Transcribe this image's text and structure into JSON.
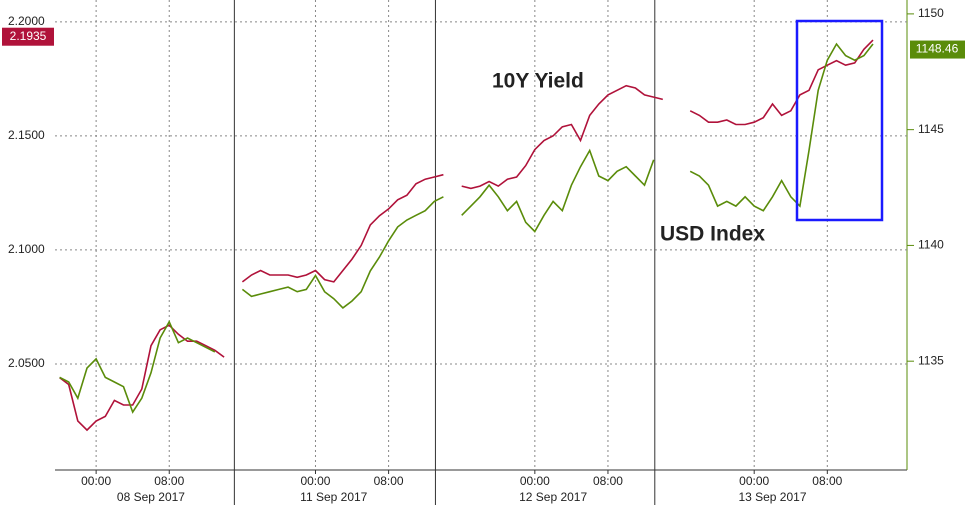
{
  "chart_data": {
    "type": "line",
    "categories": [
      null,
      null,
      null,
      null,
      "00:00",
      null,
      null,
      null,
      null,
      null,
      null,
      null,
      "08:00",
      null,
      null,
      null,
      null,
      null,
      null,
      null,
      null,
      null,
      null,
      null,
      null,
      null,
      null,
      null,
      "00:00",
      null,
      null,
      null,
      null,
      null,
      null,
      null,
      "08:00",
      null,
      null,
      null,
      null,
      null,
      null,
      null,
      null,
      null,
      null,
      null,
      null,
      null,
      null,
      null,
      "00:00",
      null,
      null,
      null,
      null,
      null,
      null,
      null,
      "08:00",
      null,
      null,
      null,
      null,
      null,
      null,
      null,
      null,
      null,
      null,
      null,
      null,
      null,
      null,
      null,
      "00:00",
      null,
      null,
      null,
      null,
      null,
      null,
      null,
      "08:00",
      null,
      null,
      null,
      null,
      null,
      null,
      null,
      null
    ],
    "dates": [
      null,
      null,
      null,
      null,
      null,
      null,
      null,
      null,
      null,
      null,
      "08 Sep 2017",
      null,
      null,
      null,
      null,
      null,
      null,
      null,
      null,
      null,
      null,
      null,
      null,
      null,
      null,
      null,
      null,
      null,
      null,
      null,
      "11 Sep 2017",
      null,
      null,
      null,
      null,
      null,
      null,
      null,
      null,
      null,
      null,
      null,
      null,
      null,
      null,
      null,
      null,
      null,
      null,
      null,
      null,
      null,
      null,
      null,
      "12 Sep 2017",
      null,
      null,
      null,
      null,
      null,
      null,
      null,
      null,
      null,
      null,
      null,
      null,
      null,
      null,
      null,
      null,
      null,
      null,
      null,
      null,
      null,
      null,
      null,
      "13 Sep 2017",
      null,
      null,
      null,
      null,
      null,
      null,
      null,
      null,
      null,
      null,
      null,
      null,
      null,
      null
    ],
    "series": [
      {
        "name": "10Y Yield",
        "color": "#b0123a",
        "axis": "y",
        "last_value": 2.1935,
        "values": [
          2.044,
          2.041,
          2.025,
          2.021,
          2.025,
          2.027,
          2.034,
          2.032,
          2.032,
          2.039,
          2.058,
          2.065,
          2.067,
          2.063,
          2.06,
          2.06,
          2.058,
          2.056,
          2.053,
          null,
          2.086,
          2.089,
          2.091,
          2.089,
          2.089,
          2.089,
          2.088,
          2.089,
          2.091,
          2.087,
          2.086,
          2.091,
          2.096,
          2.102,
          2.111,
          2.115,
          2.118,
          2.122,
          2.124,
          2.129,
          2.131,
          2.132,
          2.133,
          null,
          2.128,
          2.127,
          2.128,
          2.13,
          2.128,
          2.131,
          2.132,
          2.137,
          2.144,
          2.148,
          2.15,
          2.154,
          2.155,
          2.148,
          2.159,
          2.164,
          2.168,
          2.17,
          2.172,
          2.171,
          2.168,
          2.167,
          2.166,
          null,
          null,
          2.161,
          2.159,
          2.156,
          2.156,
          2.157,
          2.155,
          2.155,
          2.156,
          2.158,
          2.164,
          2.159,
          2.161,
          2.168,
          2.17,
          2.179,
          2.181,
          2.183,
          2.181,
          2.182,
          2.188,
          2.192,
          null,
          null,
          null
        ]
      },
      {
        "name": "USD Index",
        "color": "#5a8c0a",
        "axis": "y2",
        "last_value": 1148.46,
        "values": [
          1134.3,
          1134.1,
          1133.4,
          1134.7,
          1135.1,
          1134.3,
          1134.1,
          1133.9,
          1132.8,
          1133.4,
          1134.5,
          1136.0,
          1136.7,
          1135.8,
          1136.0,
          1135.8,
          1135.6,
          1135.4,
          null,
          null,
          1138.1,
          1137.8,
          1137.9,
          1138.0,
          1138.1,
          1138.2,
          1138.0,
          1138.1,
          1138.7,
          1138.0,
          1137.7,
          1137.3,
          1137.6,
          1138.0,
          1138.9,
          1139.5,
          1140.2,
          1140.8,
          1141.1,
          1141.3,
          1141.5,
          1141.9,
          1142.1,
          null,
          1141.3,
          1141.7,
          1142.1,
          1142.6,
          1142.1,
          1141.5,
          1141.9,
          1141.0,
          1140.6,
          1141.3,
          1141.9,
          1141.5,
          1142.6,
          1143.4,
          1144.1,
          1143.0,
          1142.8,
          1143.2,
          1143.4,
          1143.0,
          1142.6,
          1143.7,
          null,
          null,
          null,
          1143.2,
          1143.0,
          1142.6,
          1141.7,
          1141.9,
          1141.7,
          1142.1,
          1141.7,
          1141.5,
          1142.1,
          1142.8,
          1142.1,
          1141.7,
          1144.1,
          1146.7,
          1148.0,
          1148.7,
          1148.2,
          1148.0,
          1148.2,
          1148.7,
          null,
          null,
          null
        ]
      }
    ],
    "ylim": [
      2.0035,
      2.2096
    ],
    "yticks": [
      {
        "value": 2.05,
        "label": "2.0500"
      },
      {
        "value": 2.1,
        "label": "2.1000"
      },
      {
        "value": 2.15,
        "label": "2.1500"
      },
      {
        "value": 2.2,
        "label": "2.2000"
      }
    ],
    "y2lim": [
      1130.3,
      1150.6
    ],
    "y2ticks": [
      1135,
      1140,
      1145,
      1150
    ],
    "grid": true
  }
}
